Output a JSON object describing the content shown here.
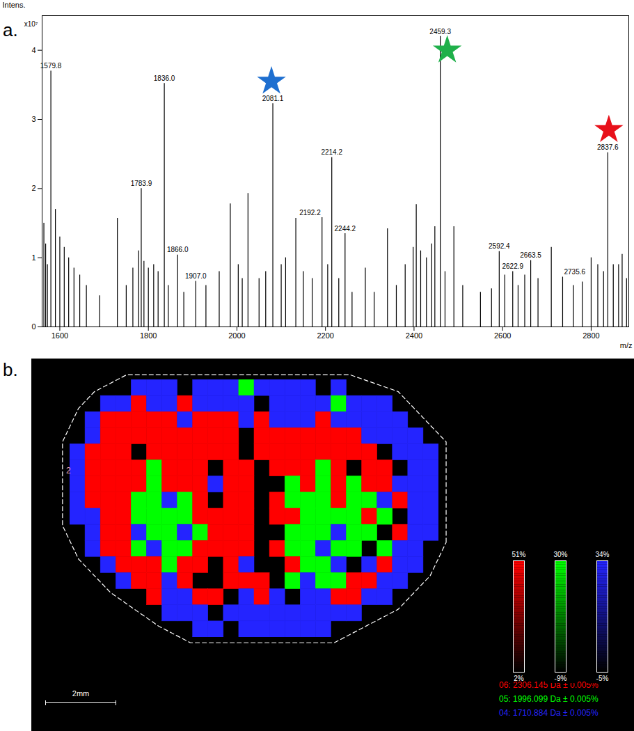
{
  "chart_data": [
    {
      "type": "stem",
      "title": "a.",
      "x_label": "m/z",
      "y_label": "Intens.",
      "y_unit_label": "x10⁷",
      "color": "#000000",
      "xlim": [
        1560,
        2885
      ],
      "xticks": [
        1600,
        1800,
        2000,
        2200,
        2400,
        2600,
        2800
      ],
      "ylim": [
        0,
        4.5
      ],
      "yticks": [
        0,
        1,
        2,
        3,
        4
      ],
      "x": [
        1564,
        1568,
        1572,
        1579.8,
        1590,
        1600,
        1610,
        1620,
        1632,
        1645,
        1660,
        1690,
        1730,
        1750,
        1765,
        1778,
        1783.9,
        1790,
        1800,
        1812,
        1822,
        1836,
        1845,
        1866,
        1880,
        1907,
        1930,
        1960,
        1985,
        2003,
        2012,
        2025,
        2050,
        2065,
        2081.1,
        2100,
        2110,
        2133,
        2150,
        2170,
        2192.2,
        2205,
        2214.2,
        2230,
        2244.2,
        2260,
        2290,
        2310,
        2340,
        2360,
        2380,
        2398,
        2405,
        2415,
        2428,
        2440,
        2447,
        2459.3,
        2470,
        2490,
        2510,
        2550,
        2575,
        2592.4,
        2605,
        2622.9,
        2635,
        2650,
        2663.5,
        2680,
        2710,
        2735.6,
        2760,
        2780,
        2800,
        2815,
        2828,
        2837.6,
        2850,
        2862,
        2870,
        2880
      ],
      "values": [
        1.5,
        1.2,
        0.9,
        3.7,
        1.7,
        1.3,
        1.15,
        1.0,
        0.85,
        0.75,
        0.6,
        0.45,
        1.57,
        0.6,
        0.85,
        1.1,
        2.0,
        0.95,
        0.85,
        0.9,
        0.8,
        3.52,
        0.6,
        1.04,
        0.5,
        0.66,
        0.6,
        0.8,
        1.78,
        0.9,
        0.7,
        1.93,
        0.7,
        0.8,
        3.23,
        0.9,
        1.0,
        1.57,
        0.8,
        0.7,
        1.58,
        0.9,
        2.45,
        0.7,
        1.35,
        0.5,
        0.85,
        0.5,
        1.42,
        0.6,
        0.9,
        1.15,
        1.77,
        1.1,
        1.0,
        1.2,
        1.45,
        4.2,
        0.8,
        1.45,
        0.6,
        0.5,
        0.55,
        1.09,
        0.75,
        0.8,
        0.6,
        0.75,
        0.96,
        0.7,
        1.15,
        0.72,
        0.6,
        0.65,
        1.0,
        0.9,
        0.8,
        2.52,
        0.9,
        0.9,
        1.05,
        0.7
      ],
      "peak_labels": [
        null,
        null,
        null,
        "1579.8",
        null,
        null,
        null,
        null,
        null,
        null,
        null,
        null,
        null,
        null,
        null,
        null,
        "1783.9",
        null,
        null,
        null,
        null,
        "1836.0",
        null,
        "1866.0",
        null,
        "1907.0",
        null,
        null,
        null,
        null,
        null,
        null,
        null,
        null,
        "2081.1",
        null,
        null,
        null,
        null,
        null,
        "2192.2",
        null,
        "2214.2",
        null,
        "2244.2",
        null,
        null,
        null,
        null,
        null,
        null,
        null,
        null,
        null,
        null,
        null,
        null,
        "2459.3",
        null,
        null,
        null,
        null,
        null,
        "2592.4",
        null,
        "2622.9",
        null,
        null,
        "2663.5",
        null,
        null,
        "2735.6",
        null,
        null,
        null,
        null,
        null,
        "2837.6",
        null,
        null,
        null,
        null
      ],
      "markers": [
        {
          "x": 2078,
          "y": 3.55,
          "color": "#1e6fd0",
          "marker": "star"
        },
        {
          "x": 2475,
          "y": 4.0,
          "color": "#1fb04a",
          "marker": "star"
        },
        {
          "x": 2840,
          "y": 2.85,
          "color": "#e8101a",
          "marker": "star"
        }
      ]
    },
    {
      "type": "heatmap",
      "title": "b.",
      "annotation": "2",
      "scale_bar_label": "2mm",
      "series": [
        {
          "name": "06: 2306.145 Da ± 0.005%",
          "color": "#ff0000",
          "range": [
            2,
            51
          ],
          "ticks": [
            {
              "value": 2,
              "label": "2%"
            },
            {
              "value": 51,
              "label": "51%"
            }
          ]
        },
        {
          "name": "05: 1996.099 Da ± 0.005%",
          "color": "#00ff00",
          "range": [
            -9,
            30
          ],
          "ticks": [
            {
              "value": -9,
              "label": "-9%"
            },
            {
              "value": 30,
              "label": "30%"
            }
          ]
        },
        {
          "name": "04: 1710.884 Da ± 0.005%",
          "color": "#2424ff",
          "range": [
            -5,
            34
          ],
          "ticks": [
            {
              "value": -5,
              "label": "-5%"
            },
            {
              "value": 34,
              "label": "34%"
            }
          ]
        }
      ],
      "cells": [
        [
          0,
          0,
          0,
          0,
          3,
          3,
          3,
          0,
          3,
          3,
          3,
          2,
          3,
          3,
          3,
          3,
          0,
          3,
          0,
          0,
          0,
          0,
          0,
          0
        ],
        [
          0,
          0,
          3,
          3,
          1,
          3,
          3,
          1,
          3,
          3,
          3,
          3,
          0,
          3,
          3,
          3,
          3,
          2,
          3,
          3,
          3,
          0,
          0,
          0
        ],
        [
          0,
          3,
          1,
          1,
          1,
          1,
          1,
          3,
          1,
          1,
          1,
          3,
          1,
          3,
          3,
          3,
          1,
          3,
          3,
          3,
          3,
          3,
          0,
          0
        ],
        [
          0,
          3,
          1,
          1,
          1,
          1,
          1,
          1,
          1,
          1,
          1,
          0,
          1,
          1,
          1,
          1,
          1,
          1,
          1,
          3,
          3,
          3,
          3,
          0
        ],
        [
          3,
          1,
          1,
          1,
          0,
          1,
          1,
          1,
          1,
          1,
          1,
          0,
          1,
          1,
          1,
          1,
          1,
          1,
          1,
          1,
          0,
          3,
          3,
          3
        ],
        [
          3,
          1,
          1,
          1,
          1,
          2,
          1,
          1,
          1,
          0,
          1,
          1,
          0,
          1,
          1,
          1,
          2,
          1,
          0,
          1,
          1,
          0,
          3,
          3
        ],
        [
          3,
          1,
          1,
          1,
          1,
          2,
          1,
          1,
          1,
          3,
          1,
          1,
          0,
          0,
          2,
          1,
          2,
          1,
          2,
          1,
          1,
          3,
          3,
          3
        ],
        [
          3,
          1,
          1,
          1,
          2,
          2,
          3,
          2,
          1,
          0,
          1,
          1,
          0,
          1,
          2,
          2,
          2,
          1,
          2,
          2,
          3,
          1,
          3,
          3
        ],
        [
          3,
          3,
          1,
          1,
          2,
          2,
          2,
          2,
          1,
          1,
          1,
          1,
          0,
          1,
          1,
          2,
          2,
          2,
          2,
          1,
          2,
          0,
          3,
          3
        ],
        [
          0,
          3,
          1,
          1,
          3,
          2,
          2,
          3,
          2,
          1,
          1,
          1,
          0,
          0,
          2,
          2,
          2,
          3,
          2,
          2,
          0,
          1,
          3,
          3
        ],
        [
          0,
          3,
          1,
          1,
          2,
          3,
          2,
          2,
          1,
          1,
          1,
          1,
          0,
          1,
          2,
          2,
          3,
          2,
          2,
          0,
          2,
          3,
          3,
          0
        ],
        [
          0,
          0,
          3,
          1,
          1,
          1,
          2,
          1,
          1,
          0,
          1,
          3,
          0,
          0,
          1,
          2,
          2,
          3,
          0,
          3,
          1,
          3,
          3,
          0
        ],
        [
          0,
          0,
          0,
          3,
          1,
          1,
          3,
          1,
          0,
          0,
          1,
          1,
          1,
          0,
          2,
          3,
          2,
          2,
          1,
          1,
          3,
          3,
          0,
          0
        ],
        [
          0,
          0,
          0,
          0,
          0,
          1,
          3,
          3,
          1,
          1,
          0,
          3,
          1,
          3,
          0,
          3,
          3,
          1,
          1,
          3,
          3,
          0,
          0,
          0
        ],
        [
          0,
          0,
          0,
          0,
          0,
          0,
          3,
          3,
          3,
          0,
          3,
          3,
          3,
          3,
          3,
          3,
          3,
          3,
          3,
          0,
          0,
          0,
          0,
          0
        ],
        [
          0,
          0,
          0,
          0,
          0,
          0,
          0,
          0,
          3,
          3,
          0,
          3,
          3,
          3,
          3,
          3,
          3,
          0,
          0,
          0,
          0,
          0,
          0,
          0
        ]
      ]
    }
  ]
}
